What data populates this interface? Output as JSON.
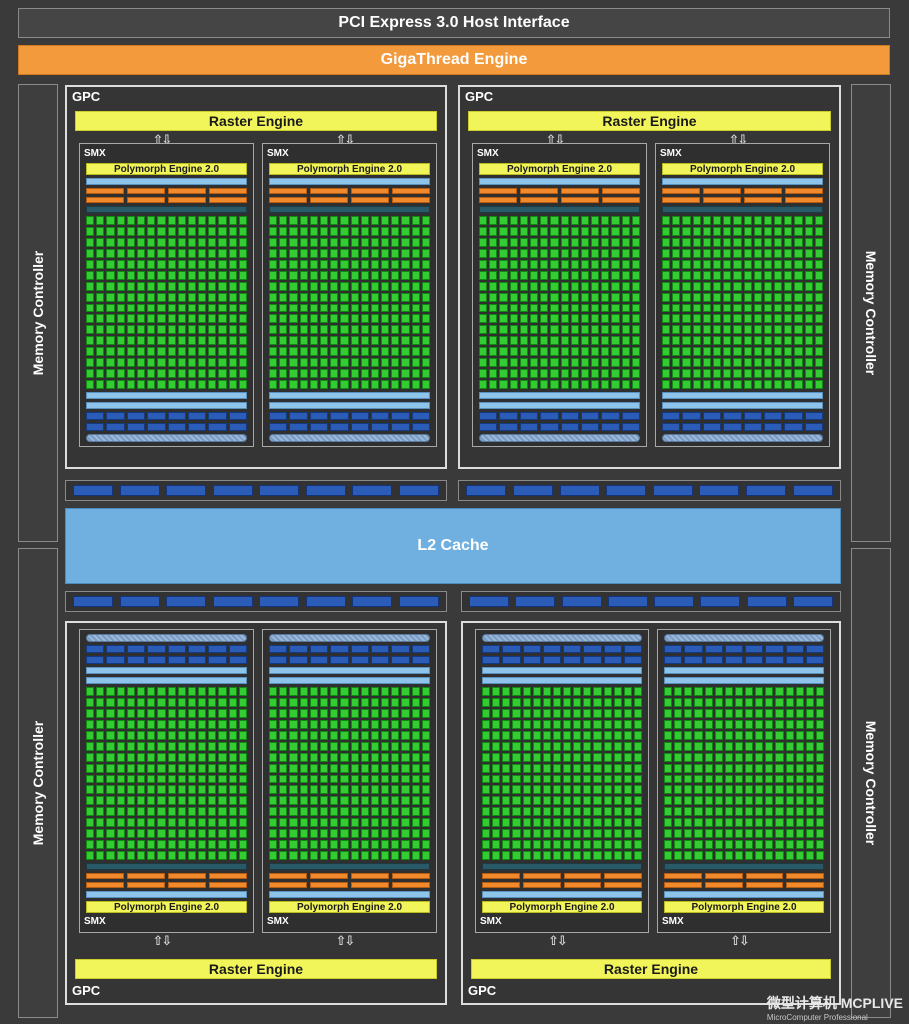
{
  "header": {
    "pcie_label": "PCI Express 3.0 Host Interface",
    "gigathread_label": "GigaThread Engine"
  },
  "memory_controller_label": "Memory Controller",
  "gpc_label": "GPC",
  "raster_label": "Raster Engine",
  "smx_label": "SMX",
  "polymorph_label": "Polymorph Engine 2.0",
  "l2_label": "L2 Cache",
  "watermark": {
    "cn": "微型计算机",
    "en": "MicroComputer",
    "logo": "MCPLIVE",
    "sub": "Professional"
  },
  "colors": {
    "background": "#3a3a3a",
    "gigathread": "#f39a3c",
    "raster": "#f2f55a",
    "core": "#33cc33",
    "l2": "#6fb0e0",
    "ld_st": "#2a5cb8"
  }
}
